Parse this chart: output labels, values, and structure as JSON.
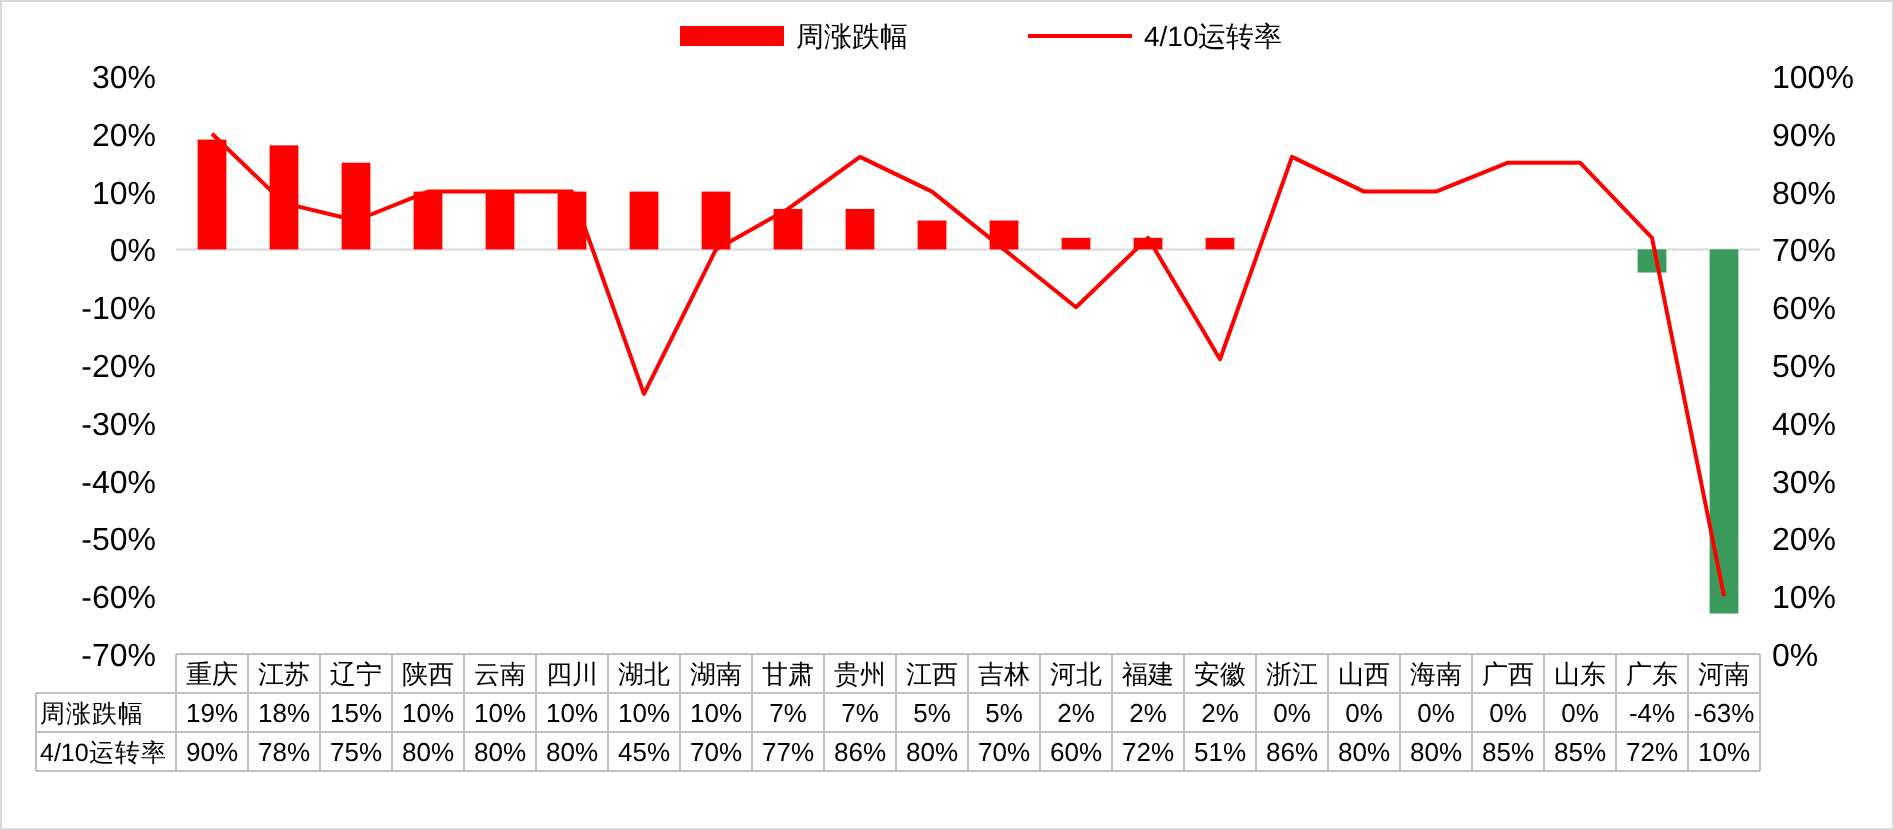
{
  "chart_data": {
    "type": "bar",
    "categories": [
      "重庆",
      "江苏",
      "辽宁",
      "陕西",
      "云南",
      "四川",
      "湖北",
      "湖南",
      "甘肃",
      "贵州",
      "江西",
      "吉林",
      "河北",
      "福建",
      "安徽",
      "浙江",
      "山西",
      "海南",
      "广西",
      "山东",
      "广东",
      "河南"
    ],
    "series": [
      {
        "name": "周涨跌幅",
        "color": "#ff0000",
        "colors": [
          "#ff0000",
          "#ff0000",
          "#ff0000",
          "#ff0000",
          "#ff0000",
          "#ff0000",
          "#ff0000",
          "#ff0000",
          "#ff0000",
          "#ff0000",
          "#ff0000",
          "#ff0000",
          "#ff0000",
          "#ff0000",
          "#ff0000",
          "#ff0000",
          "#ff0000",
          "#ff0000",
          "#ff0000",
          "#ff0000",
          "#3b9b5c",
          "#3b9b5c"
        ],
        "values": [
          19,
          18,
          15,
          10,
          10,
          10,
          10,
          10,
          7,
          7,
          5,
          5,
          2,
          2,
          2,
          0,
          0,
          0,
          0,
          0,
          -4,
          -63
        ],
        "value_labels": [
          "19%",
          "18%",
          "15%",
          "10%",
          "10%",
          "10%",
          "10%",
          "10%",
          "7%",
          "7%",
          "5%",
          "5%",
          "2%",
          "2%",
          "2%",
          "0%",
          "0%",
          "0%",
          "0%",
          "0%",
          "-4%",
          "-63%"
        ]
      },
      {
        "name": "4/10运转率",
        "type": "line",
        "axis": "y2",
        "color": "#ff0000",
        "values": [
          90,
          78,
          75,
          80,
          80,
          80,
          45,
          70,
          77,
          86,
          80,
          70,
          60,
          72,
          51,
          86,
          80,
          80,
          85,
          85,
          72,
          10
        ],
        "value_labels": [
          "90%",
          "78%",
          "75%",
          "80%",
          "80%",
          "80%",
          "45%",
          "70%",
          "77%",
          "86%",
          "80%",
          "70%",
          "60%",
          "72%",
          "51%",
          "86%",
          "80%",
          "80%",
          "85%",
          "85%",
          "72%",
          "10%"
        ]
      }
    ],
    "ylim": [
      -70,
      30
    ],
    "yticks": [
      {
        "value": -70,
        "label": "-70%"
      },
      {
        "value": -60,
        "label": "-60%"
      },
      {
        "value": -50,
        "label": "-50%"
      },
      {
        "value": -40,
        "label": "-40%"
      },
      {
        "value": -30,
        "label": "-30%"
      },
      {
        "value": -20,
        "label": "-20%"
      },
      {
        "value": -10,
        "label": "-10%"
      },
      {
        "value": 0,
        "label": "0%"
      },
      {
        "value": 10,
        "label": "10%"
      },
      {
        "value": 20,
        "label": "20%"
      },
      {
        "value": 30,
        "label": "30%"
      }
    ],
    "y2lim": [
      0,
      100
    ],
    "y2ticks": [
      {
        "value": 0,
        "label": "0%"
      },
      {
        "value": 10,
        "label": "10%"
      },
      {
        "value": 20,
        "label": "20%"
      },
      {
        "value": 30,
        "label": "30%"
      },
      {
        "value": 40,
        "label": "40%"
      },
      {
        "value": 50,
        "label": "50%"
      },
      {
        "value": 60,
        "label": "60%"
      },
      {
        "value": 70,
        "label": "70%"
      },
      {
        "value": 80,
        "label": "80%"
      },
      {
        "value": 90,
        "label": "90%"
      },
      {
        "value": 100,
        "label": "100%"
      }
    ],
    "legend": "top"
  }
}
